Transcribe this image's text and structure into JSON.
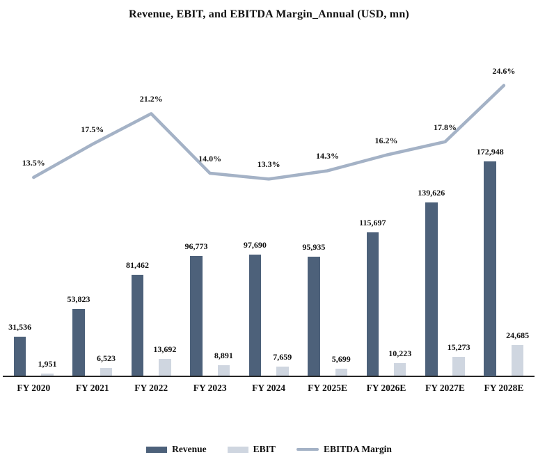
{
  "title": "Revenue, EBIT, and EBITDA Margin_Annual (USD, mn)",
  "legend": [
    {
      "label": "Revenue",
      "type": "bar",
      "color": "#4d617a"
    },
    {
      "label": "EBIT",
      "type": "bar",
      "color": "#cfd6e0"
    },
    {
      "label": "EBITDA Margin",
      "type": "line",
      "color": "#a4b2c6"
    }
  ],
  "chart_data": {
    "type": "bar",
    "combo": "bars + line (dual axis)",
    "title": "Revenue, EBIT, and EBITDA Margin_Annual (USD, mn)",
    "categories": [
      "FY 2020",
      "FY 2021",
      "FY 2022",
      "FY 2023",
      "FY 2024",
      "FY 2025E",
      "FY 2026E",
      "FY 2027E",
      "FY 2028E"
    ],
    "series": [
      {
        "name": "Revenue",
        "type": "bar",
        "color": "#4d617a",
        "values": [
          31536,
          53823,
          81462,
          96773,
          97690,
          95935,
          115697,
          139626,
          172948
        ],
        "labels": [
          "31,536",
          "53,823",
          "81,462",
          "96,773",
          "97,690",
          "95,935",
          "115,697",
          "139,626",
          "172,948"
        ]
      },
      {
        "name": "EBIT",
        "type": "bar",
        "color": "#cfd6e0",
        "values": [
          1951,
          6523,
          13692,
          8891,
          7659,
          5699,
          10223,
          15273,
          24685
        ],
        "labels": [
          "1,951",
          "6,523",
          "13,692",
          "8,891",
          "7,659",
          "5,699",
          "10,223",
          "15,273",
          "24,685"
        ]
      },
      {
        "name": "EBITDA Margin",
        "type": "line",
        "color": "#a4b2c6",
        "values": [
          13.5,
          17.5,
          21.2,
          14.0,
          13.3,
          14.3,
          16.2,
          17.8,
          24.6
        ],
        "labels": [
          "13.5%",
          "17.5%",
          "21.2%",
          "14.0%",
          "13.3%",
          "14.3%",
          "16.2%",
          "17.8%",
          "24.6%"
        ]
      }
    ],
    "xlabel": "",
    "ylabel": "",
    "value_axes_hidden": true,
    "grid": false,
    "legend_position": "bottom",
    "data_labels": true
  }
}
